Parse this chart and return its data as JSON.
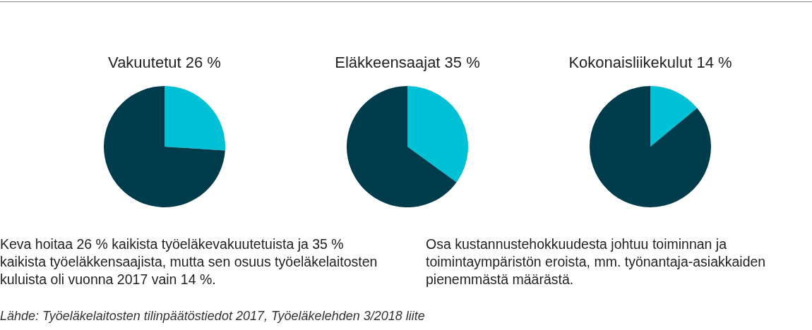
{
  "chart_data": [
    {
      "type": "pie",
      "title": "Vakuutetut 26 %",
      "categories": [
        null,
        null
      ],
      "values": [
        26,
        74
      ],
      "colors": [
        "#00c1d5",
        "#003c4c"
      ],
      "annotations": [
        "Keva hoitaa 26 % kaikista työeläkevakuutetuista ja 35 % kaikista työeläkkensaajista, mutta sen osuus työeläkelaitosten kuluista oli vuonna 2017 vain 14 %.",
        "Lähde: Työeläkelaitosten tilinpäätöstiedot 2017, Työeläkelehden 3/2018 liite"
      ]
    },
    {
      "type": "pie",
      "title": "Eläkkeensaajat 35 %",
      "categories": [
        null,
        null
      ],
      "values": [
        35,
        65
      ],
      "colors": [
        "#00c1d5",
        "#003c4c"
      ]
    },
    {
      "type": "pie",
      "title": "Kokonaisliikekulut 14 %",
      "categories": [
        null,
        null
      ],
      "values": [
        14,
        86
      ],
      "colors": [
        "#00c1d5",
        "#003c4c"
      ],
      "annotations": [
        "Osa kustannustehokkuudesta johtuu toiminnan ja toimintaympäristön eroista, mm. työnantaja-asiakkaiden pienemmästä määrästä."
      ]
    }
  ]
}
